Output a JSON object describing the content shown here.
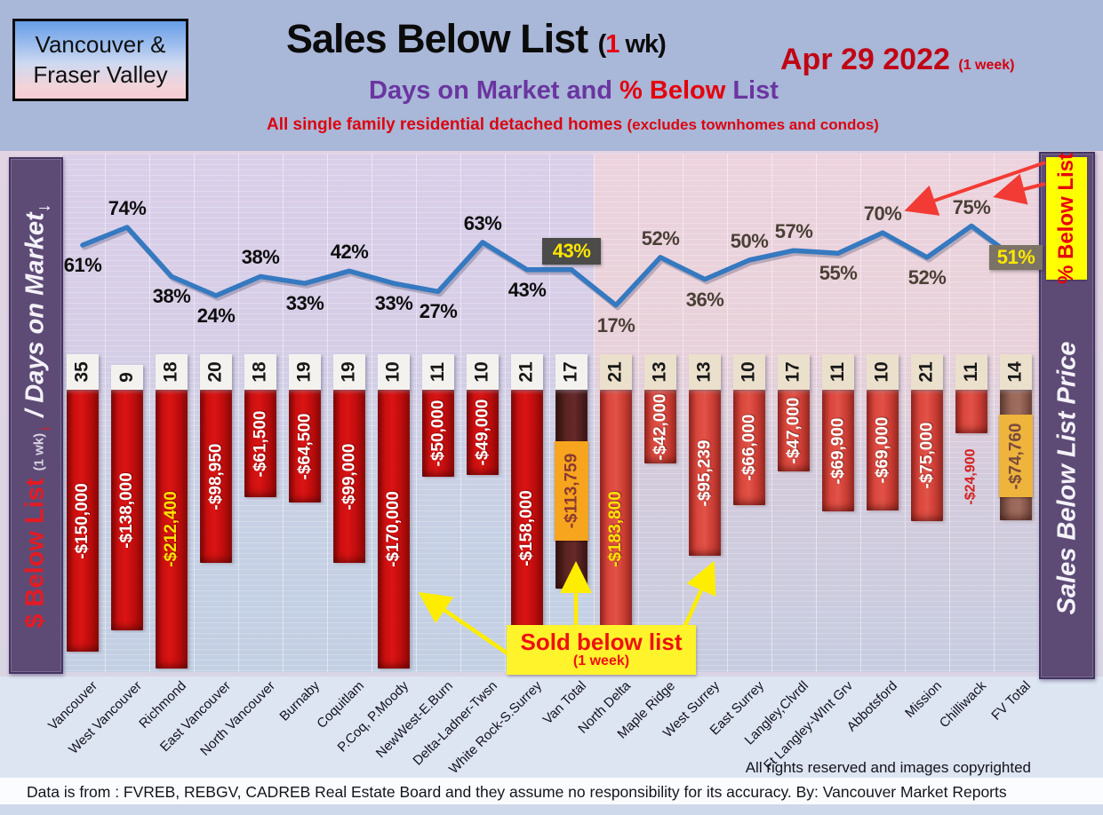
{
  "header": {
    "region_box_line1": "Vancouver &",
    "region_box_line2": "Fraser Valley",
    "title": "Sales Below List ",
    "title_paren_open": "(",
    "title_red_one": "1",
    "title_paren_rest": " wk)",
    "date": "Apr 29  2022 ",
    "date_suffix": "(1 week)",
    "subtitle_part1": "Days on Market and ",
    "subtitle_red": "% Below ",
    "subtitle_part2": "List",
    "category_note": "All single family residential detached homes ",
    "category_note_paren": "(excludes townhomes and condos)"
  },
  "left_sidebar": {
    "part_red": "$ Below List ",
    "part_small": "(1 wk)",
    "arrow": "↓",
    "part_sep": " / ",
    "part_white": "Days on Market"
  },
  "right_sidebar": {
    "badge": "% Below List",
    "label": "Sales Below List Price"
  },
  "annotations": {
    "sold_line1": "Sold below list",
    "sold_line2": "(1 week)"
  },
  "footer": {
    "rights": "All rights reserved and  images copyrighted",
    "data_note": "Data is from : FVREB, REBGV, CADREB Real Estate Board and they assume no responsibility for its accuracy. By: Vancouver Market Reports"
  },
  "chart_data": {
    "type": "combo line + bar",
    "categories": [
      "Vancouver",
      "West Vancouver",
      "Richmond",
      "East Vancouver",
      "North Vancouver",
      "Burnaby",
      "Coquitlam",
      "P.Coq, P.Moody",
      "NewWest-E.Burn",
      "Delta-Ladner-Twsn",
      "White Rock-S.Surrey",
      "Van Total",
      "North Delta",
      "Maple Ridge",
      "West Surrey",
      "East Surrey",
      "Langley,Clvrdl",
      "Ft Langley-WInt Grv",
      "Abbotsford",
      "Mission",
      "Chilliwack",
      "FV Total"
    ],
    "region_split_index": 12,
    "series": [
      {
        "name": "% Below List",
        "type": "line",
        "unit": "%",
        "values": [
          61,
          74,
          38,
          24,
          38,
          33,
          42,
          33,
          27,
          63,
          43,
          43,
          17,
          52,
          36,
          50,
          57,
          55,
          70,
          52,
          75,
          51
        ],
        "label_side": [
          "below",
          "above",
          "below",
          "below",
          "above",
          "below",
          "above",
          "below",
          "below",
          "above",
          "below",
          "box",
          "below",
          "above",
          "below",
          "above",
          "above",
          "below",
          "above",
          "below",
          "above",
          "box"
        ]
      },
      {
        "name": "Days on Market",
        "type": "badge-row",
        "values": [
          35,
          9,
          18,
          20,
          18,
          19,
          19,
          10,
          11,
          10,
          21,
          17,
          21,
          13,
          13,
          10,
          17,
          11,
          10,
          21,
          11,
          14
        ]
      },
      {
        "name": "$ Below List",
        "type": "bar",
        "values": [
          -150000,
          -138000,
          -212400,
          -98950,
          -61500,
          -64500,
          -99000,
          -170000,
          -50000,
          -49000,
          -158000,
          -113759,
          -183800,
          -42000,
          -95239,
          -66000,
          -47000,
          -69900,
          -69000,
          -75000,
          -24900,
          -74760
        ],
        "labels": [
          "-$150,000",
          "-$138,000",
          "-$212,400",
          "-$98,950",
          "-$61,500",
          "-$64,500",
          "-$99,000",
          "-$170,000",
          "-$50,000",
          "-$49,000",
          "-$158,000",
          "-$113,759",
          "-$183,800",
          "-$42,000",
          "-$95,239",
          "-$66,000",
          "-$47,000",
          "-$69,900",
          "-$69,000",
          "-$75,000",
          "-$24,900",
          "-$74,760"
        ]
      }
    ],
    "special_bars": {
      "11": "van-total",
      "21": "fv-total"
    },
    "bar_label_color_overrides": {
      "2": "#ffe300",
      "12": "#ffe300"
    },
    "outside_label_index": 20,
    "ylim_line_pct": [
      0,
      100
    ],
    "grid": "on",
    "colors": {
      "line": "#3579c0",
      "gvr_bar": "#cc1010",
      "fv_bar": "#d8463c",
      "van_total_bar": "#5d2522",
      "fv_total_bar": "#97655a",
      "van_total_box_bg": "#f7a41f",
      "van_total_box_text": "#8a3a2e",
      "fv_total_box_bg": "#eeb43c",
      "fv_total_box_text": "#7a4a3c",
      "pct_left_text": "#0d0d0d",
      "pct_right_text": "#4a4036",
      "pct_box_43_bg": "#4b4b49",
      "pct_box_51_bg": "#7b7365",
      "pct_box_text": "#ffe800",
      "chilliwack_label": "#d42020",
      "arrow_red": "#f23b34",
      "arrow_yellow": "#ffed00"
    }
  }
}
